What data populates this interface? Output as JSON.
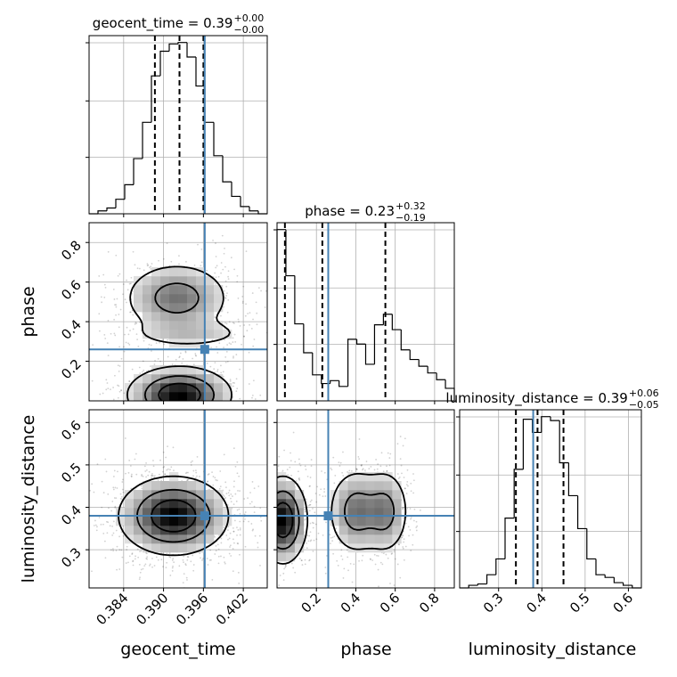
{
  "chart_data": {
    "type": "corner",
    "parameters": [
      "geocent_time",
      "phase",
      "luminosity_distance"
    ],
    "truths": {
      "geocent_time": 0.3962,
      "phase": 0.26,
      "luminosity_distance": 0.38
    },
    "truth_color": "#4682b4",
    "ranges": {
      "geocent_time": [
        0.3788,
        0.4056
      ],
      "phase": [
        0.0,
        0.9
      ],
      "luminosity_distance": [
        0.21,
        0.63
      ]
    },
    "ticks": {
      "geocent_time": {
        "values": [
          0.384,
          0.39,
          0.396,
          0.402
        ],
        "labels": [
          "0.384",
          "0.390",
          "0.396",
          "0.402"
        ]
      },
      "phase": {
        "values": [
          0.2,
          0.4,
          0.6,
          0.8
        ],
        "labels": [
          "0.2",
          "0.4",
          "0.6",
          "0.8"
        ]
      },
      "luminosity_distance": {
        "values": [
          0.3,
          0.4,
          0.5,
          0.6
        ],
        "labels": [
          "0.3",
          "0.4",
          "0.5",
          "0.6"
        ]
      }
    },
    "titles": [
      {
        "param": "geocent_time",
        "text": "geocent_time = 0.39",
        "plus": "+0.00",
        "minus": "−0.00"
      },
      {
        "param": "phase",
        "text": "phase = 0.23",
        "plus": "+0.32",
        "minus": "−0.19"
      },
      {
        "param": "luminosity_distance",
        "text": "luminosity_distance = 0.39",
        "plus": "+0.06",
        "minus": "−0.05"
      }
    ],
    "quantiles": {
      "geocent_time": [
        0.3887,
        0.3924,
        0.396
      ],
      "phase": [
        0.04,
        0.23,
        0.55
      ],
      "luminosity_distance": [
        0.34,
        0.39,
        0.45
      ]
    },
    "histograms": {
      "geocent_time": {
        "edges": [
          0.3788,
          0.38014,
          0.38148,
          0.38282,
          0.38416,
          0.3855,
          0.38684,
          0.38818,
          0.38952,
          0.39086,
          0.3922,
          0.39354,
          0.39488,
          0.39622,
          0.39756,
          0.3989,
          0.40024,
          0.40158,
          0.40292,
          0.40426,
          0.4056
        ],
        "counts": [
          0,
          2,
          4,
          10,
          20,
          38,
          63,
          95,
          112,
          117,
          118,
          108,
          88,
          63,
          40,
          22,
          12,
          5,
          2,
          0
        ]
      },
      "phase": {
        "edges": [
          0.0,
          0.045,
          0.09,
          0.135,
          0.18,
          0.225,
          0.27,
          0.315,
          0.36,
          0.405,
          0.45,
          0.495,
          0.54,
          0.585,
          0.63,
          0.675,
          0.72,
          0.765,
          0.81,
          0.855,
          0.9
        ],
        "counts": [
          178,
          130,
          80,
          50,
          27,
          18,
          21,
          15,
          64,
          59,
          38,
          79,
          90,
          74,
          53,
          43,
          36,
          29,
          22,
          13
        ]
      },
      "luminosity_distance": {
        "edges": [
          0.21,
          0.231,
          0.252,
          0.273,
          0.294,
          0.315,
          0.336,
          0.357,
          0.378,
          0.399,
          0.42,
          0.441,
          0.462,
          0.483,
          0.504,
          0.525,
          0.546,
          0.567,
          0.588,
          0.609,
          0.63
        ],
        "counts": [
          0,
          2,
          3,
          10,
          22,
          53,
          90,
          128,
          118,
          130,
          127,
          95,
          70,
          45,
          22,
          10,
          8,
          4,
          2,
          0
        ]
      }
    },
    "density_2d": [
      {
        "x": "geocent_time",
        "y": "phase",
        "modes": [
          {
            "cx": 0.3924,
            "cy": 0.03,
            "sx": 0.0038,
            "sy": 0.07,
            "w": 1.0
          },
          {
            "cx": 0.392,
            "cy": 0.52,
            "sx": 0.004,
            "sy": 0.09,
            "w": 0.55
          },
          {
            "cx": 0.394,
            "cy": 0.34,
            "sx": 0.005,
            "sy": 0.04,
            "w": 0.22
          }
        ]
      },
      {
        "x": "geocent_time",
        "y": "luminosity_distance",
        "modes": [
          {
            "cx": 0.3915,
            "cy": 0.38,
            "sx": 0.004,
            "sy": 0.045,
            "w": 1.0
          }
        ]
      },
      {
        "x": "phase",
        "y": "luminosity_distance",
        "modes": [
          {
            "cx": 0.03,
            "cy": 0.37,
            "sx": 0.06,
            "sy": 0.05,
            "w": 1.0
          },
          {
            "cx": 0.4,
            "cy": 0.39,
            "sx": 0.07,
            "sy": 0.05,
            "w": 0.55
          },
          {
            "cx": 0.55,
            "cy": 0.39,
            "sx": 0.06,
            "sy": 0.05,
            "w": 0.5
          }
        ]
      }
    ],
    "contour_levels": [
      0.12,
      0.4,
      0.72
    ],
    "grid": true,
    "scatter_points": true
  }
}
